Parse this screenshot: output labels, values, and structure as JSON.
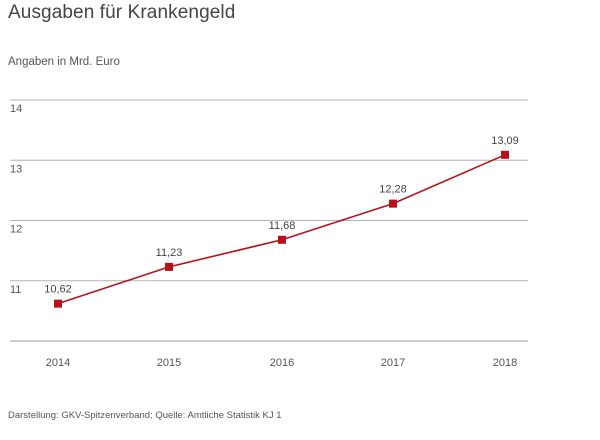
{
  "chart_data": {
    "type": "line",
    "title": "Ausgaben für Krankengeld",
    "subtitle": "Angaben in Mrd. Euro",
    "categories": [
      "2014",
      "2015",
      "2016",
      "2017",
      "2018"
    ],
    "series": [
      {
        "values": [
          10.62,
          11.23,
          11.68,
          12.28,
          13.09
        ],
        "labels": [
          "10,62",
          "11,23",
          "11,68",
          "12,28",
          "13,09"
        ]
      }
    ],
    "y_ticks": [
      "11",
      "12",
      "13",
      "14"
    ],
    "ylim": [
      10,
      14
    ],
    "grid": true,
    "line_color": "#b5121b",
    "source": "Darstellung: GKV-Spitzenverband; Quelle: Amtliche Statistik KJ 1"
  }
}
